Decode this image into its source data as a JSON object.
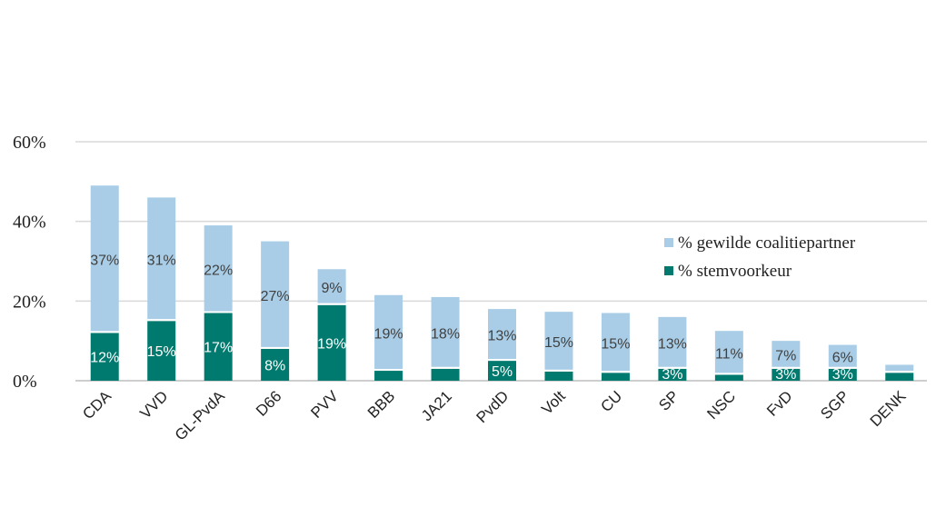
{
  "chart_data": {
    "type": "bar",
    "stacked": true,
    "categories": [
      "CDA",
      "VVD",
      "GL-PvdA",
      "D66",
      "PVV",
      "BBB",
      "JA21",
      "PvdD",
      "Volt",
      "CU",
      "SP",
      "NSC",
      "FvD",
      "SGP",
      "DENK"
    ],
    "series": [
      {
        "name": "% stemvoorkeur",
        "color": "#007a6e",
        "values": [
          12,
          15,
          17,
          8,
          19,
          2.5,
          3,
          5,
          2.3,
          2,
          3,
          1.5,
          3,
          3,
          2
        ],
        "labels": [
          "12%",
          "15%",
          "17%",
          "8%",
          "19%",
          "",
          "",
          "5%",
          "",
          "",
          "3%",
          "",
          "3%",
          "3%",
          ""
        ]
      },
      {
        "name": "% gewilde coalitiepartner",
        "color": "#a9cde6",
        "values": [
          37,
          31,
          22,
          27,
          9,
          19,
          18,
          13,
          15,
          15,
          13,
          11,
          7,
          6,
          2
        ],
        "labels": [
          "37%",
          "31%",
          "22%",
          "27%",
          "9%",
          "19%",
          "18%",
          "13%",
          "15%",
          "15%",
          "13%",
          "11%",
          "7%",
          "6%",
          ""
        ]
      }
    ],
    "y_ticks": [
      "0%",
      "20%",
      "40%",
      "60%"
    ],
    "ylim": [
      0,
      60
    ],
    "grid": true,
    "legend_position": "right"
  }
}
